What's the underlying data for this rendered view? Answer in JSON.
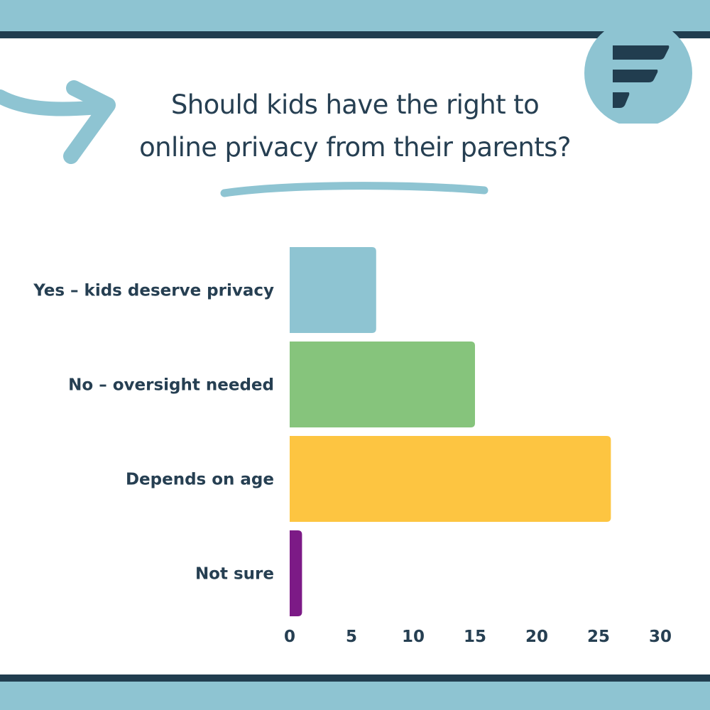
{
  "title_lines": [
    "Should kids have the right to",
    "online privacy from their parents?"
  ],
  "colors": {
    "band": "#8ec4d2",
    "rule": "#213d4f",
    "text": "#263f52",
    "accent": "#8ec4d2"
  },
  "decorations": [
    "arrow-icon",
    "logo-icon",
    "brush-underline"
  ],
  "chart_data": {
    "type": "bar",
    "orientation": "horizontal",
    "categories": [
      "Yes – kids deserve privacy",
      "No – oversight needed",
      "Depends on age",
      "Not sure"
    ],
    "values": [
      7,
      15,
      26,
      1
    ],
    "colors": [
      "#8ec4d2",
      "#86c47c",
      "#fdc541",
      "#7c1a86"
    ],
    "xticks": [
      0,
      5,
      10,
      15,
      20,
      25,
      30
    ],
    "xlim": [
      0,
      30
    ],
    "title": "Should kids have the right to online privacy from their parents?",
    "xlabel": "",
    "ylabel": "",
    "grid": false,
    "legend": "none"
  }
}
